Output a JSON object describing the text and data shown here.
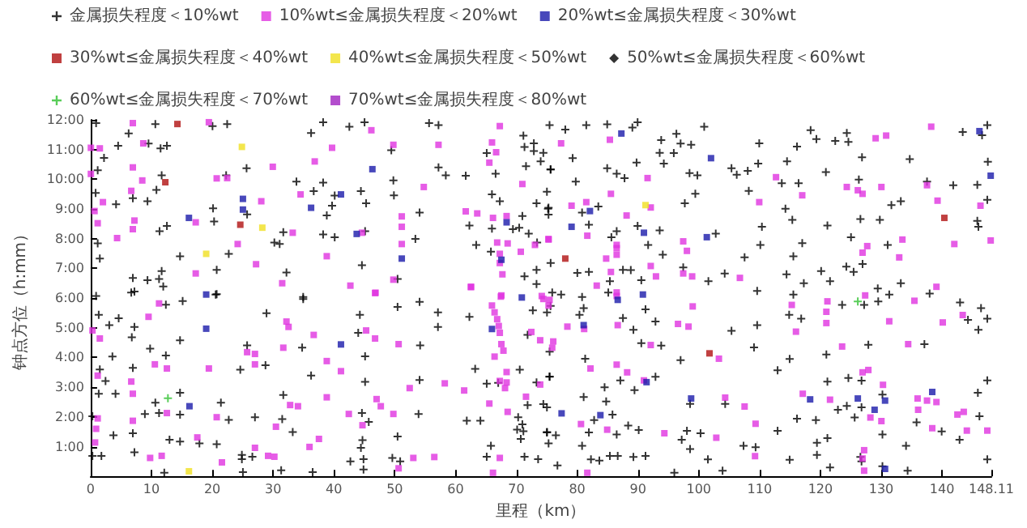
{
  "chart_data": {
    "type": "scatter",
    "xlabel": "里程（km）",
    "ylabel": "钟点方位（h:mm）",
    "xlim": [
      0,
      148.11
    ],
    "ylim": [
      0,
      12
    ],
    "xticks": [
      0,
      10,
      20,
      30,
      40,
      50,
      60,
      70,
      80,
      90,
      100,
      110,
      120,
      130,
      140,
      148.11
    ],
    "yticks": [
      {
        "value": 1,
        "label": "1:00"
      },
      {
        "value": 2,
        "label": "2:00"
      },
      {
        "value": 3,
        "label": "3:00"
      },
      {
        "value": 4,
        "label": "4:00"
      },
      {
        "value": 5,
        "label": "5:00"
      },
      {
        "value": 6,
        "label": "6:00"
      },
      {
        "value": 7,
        "label": "7:00"
      },
      {
        "value": 8,
        "label": "8:00"
      },
      {
        "value": 9,
        "label": "9:00"
      },
      {
        "value": 10,
        "label": "10:00"
      },
      {
        "value": 11,
        "label": "11:00"
      },
      {
        "value": 12,
        "label": "12:00"
      }
    ],
    "legend": "top",
    "series": [
      {
        "name": "金属损失程度＜10%wt",
        "color": "#000000",
        "marker": "cross",
        "x": [
          0.9,
          10.64,
          20.04,
          22.45,
          38.23,
          42.54,
          45.04,
          55.65,
          57.2,
          6.25,
          36.25,
          12.54,
          9.52,
          11.5,
          4.52,
          2.2,
          49.44,
          71.16,
          72.88,
          71.34,
          65.13,
          72.88,
          74.44,
          74.0,
          75.64,
          71.59,
          57.2,
          58.4,
          61.68,
          66.59,
          11.68,
          22.28,
          25.64,
          1.16,
          33.84,
          38.23,
          49.78,
          44.44,
          40.13,
          36.68,
          49.87,
          10.82,
          0.82,
          6.94,
          9.35,
          4.18,
          20.13,
          39.7,
          45.3,
          54.09,
          65.99,
          67.28,
          70.99,
          73.32,
          75.21,
          20.3,
          12.54,
          11.33,
          25.73,
          31.68,
          38.83,
          38.23,
          40.13,
          45.13,
          53.4,
          62.28,
          65.99,
          69.44,
          70.47,
          72.03,
          73.41,
          63.4,
          65.82,
          30.21,
          31.08,
          22.71,
          14.7,
          1.16,
          1.51,
          44.61,
          32.2,
          20.73,
          11.68,
          6.94,
          9.35,
          11.25,
          71.34,
          73.32,
          73.32,
          75.64,
          50.47,
          11.94,
          6.68,
          20.56,
          0.9,
          34.95,
          75.9,
          7.2,
          20.73,
          12.37,
          15.13,
          34.95,
          50.47,
          54.09,
          57.11,
          62.28,
          75.04,
          72.71,
          1.33,
          4.61,
          7.2,
          3.06,
          28.92,
          44.27,
          44.0,
          57.11,
          6.77,
          14.7,
          25.73,
          34.78,
          54.18,
          71.85,
          75.47,
          3.58,
          9.78,
          12.37,
          45.13,
          24.61,
          28.75,
          1.51,
          6.94,
          36.25,
          45.13,
          54.09,
          63.23,
          70.56,
          73.32,
          75.47,
          65.13,
          67.02,
          2.45,
          4.09,
          1.33,
          14.7,
          31.68,
          10.64,
          21.42,
          44.61,
          45.73,
          53.92,
          71.85,
          74.44,
          8.92,
          11.25,
          14.7,
          22.71,
          27.02,
          31.5,
          0.3,
          61.85,
          64.09,
          70.3,
          70.99,
          71.16,
          70.13,
          3.75,
          6.94,
          12.97,
          14.7,
          17.89,
          20.73,
          33.23,
          44.7,
          44.44,
          50.47,
          65.82,
          70.73,
          75.04,
          75.3,
          73.58,
          7.2,
          1.77,
          0.3,
          24.87,
          24.87,
          26.59,
          42.71,
          44.87,
          49.61,
          50.9,
          65.13,
          71.34,
          31.33,
          36.51,
          12.11,
          44.87,
          25.04,
          75.46,
          81.5,
          84.94,
          89.94,
          89.08,
          100.89,
          118.39,
          124.34,
          147.44,
          143.4,
          78.05,
          96.32,
          93.82,
          97.01,
          98.74,
          109.94,
          116.15,
          119.34,
          122.44,
          124.6,
          126.84,
          134.69,
          147.53,
          146.58,
          93.57,
          95.89,
          79.26,
          89.77,
          94.25,
          109.77,
          114.51,
          75.63,
          84.94,
          86.5,
          87.79,
          98.48,
          99.77,
          105.38,
          106.24,
          108.05,
          120.9,
          79.77,
          108.22,
          113.65,
          116.41,
          126.32,
          137.53,
          141.84,
          145.8,
          75.03,
          83.48,
          99.43,
          97.7,
          114.25,
          131.67,
          133.22,
          147.44,
          75.29,
          75.29,
          80.81,
          81.93,
          89.94,
          93.57,
          110.38,
          115.38,
          121.15,
          126.58,
          129.77,
          145.8,
          145.98,
          86.5,
          85.63,
          91.67,
          94.08,
          102.79,
          107.53,
          110.12,
          115.55,
          117.01,
          125.03,
          131.06,
          126.93,
          124.26,
          81.93,
          80.03,
          87.53,
          88.82,
          97.44,
          104.26,
          114.43,
          120.12,
          125.46,
          85.38,
          90.55,
          101.58,
          117.27,
          121.58,
          129.43,
          133.22,
          137.96,
          77.36,
          80.81,
          85.12,
          91.24,
          92.88,
          109.6,
          115.55,
          75.63,
          81.07,
          80.38,
          87.53,
          89.25,
          105.38,
          109.6,
          114.86,
          116.84,
          123.57,
          127.19,
          129.51,
          131.32,
          142.96,
          146.41,
          147.44,
          144.26,
          145.98,
          90.55,
          93.82,
          109.08,
          120.98,
          127.88,
          137.1,
          81.32,
          75.46,
          87.1,
          92.88,
          97.01,
          112.96,
          114.94,
          121.15,
          124.6,
          126.76,
          147.44,
          145.89,
          84.51,
          89.43,
          81.07,
          84.77,
          98.57,
          104.34,
          122.88,
          124.34,
          126.76,
          130.2,
          135.81,
          139.94,
          146.15,
          75.03,
          82.79,
          85.81,
          88.39,
          90.12,
          98.05,
          100.29,
          112.96,
          116.15,
          119.26,
          125.63,
          130.2,
          142.88,
          75.03,
          76.5,
          81.93,
          86.5,
          97.19,
          107.36,
          109.34,
          119.43,
          121.15,
          134.08,
          80.81,
          82.27,
          83.65,
          85.38,
          86.67,
          89.25,
          91.24,
          98.57,
          101.5,
          114.94,
          119.43,
          121.58,
          126.58,
          130.2,
          134.34,
          147.44,
          76.76,
          95.98,
          103.91,
          126.76
        ],
        "values": [
          11.89,
          11.86,
          11.79,
          11.86,
          11.92,
          11.77,
          11.92,
          11.89,
          11.82,
          11.54,
          11.56,
          11.13,
          11.2,
          11.04,
          11.13,
          10.72,
          10.98,
          11.47,
          11.21,
          11.09,
          10.88,
          10.95,
          10.89,
          10.6,
          10.33,
          10.44,
          10.4,
          10.13,
          10.12,
          10.19,
          10.13,
          10.13,
          10.37,
          10.3,
          9.92,
          9.89,
          9.96,
          9.6,
          9.45,
          9.6,
          9.46,
          9.64,
          9.54,
          9.36,
          9.26,
          9.16,
          9.02,
          9.11,
          9.19,
          8.88,
          9.49,
          9.26,
          8.76,
          9.19,
          9.01,
          8.58,
          8.43,
          8.25,
          8.82,
          8.22,
          8.78,
          8.14,
          8.05,
          8.25,
          7.99,
          8.44,
          8.34,
          8.32,
          8.37,
          8.17,
          7.87,
          7.79,
          7.56,
          7.87,
          7.82,
          7.49,
          7.41,
          7.84,
          7.33,
          7.11,
          6.86,
          6.95,
          6.91,
          6.68,
          6.6,
          6.64,
          6.73,
          6.95,
          6.47,
          7.18,
          6.64,
          6.39,
          6.19,
          6.12,
          6.07,
          6.04,
          6.19,
          6.22,
          6.13,
          5.78,
          5.9,
          5.97,
          5.7,
          5.87,
          5.52,
          5.37,
          5.52,
          5.59,
          5.44,
          5.32,
          5.03,
          5.09,
          5.49,
          5.44,
          4.83,
          5.03,
          4.68,
          4.58,
          4.41,
          4.33,
          4.41,
          4.76,
          4.2,
          4.03,
          4.3,
          4.07,
          4.04,
          3.59,
          3.74,
          3.6,
          3.65,
          3.39,
          3.18,
          3.24,
          3.62,
          3.59,
          3.16,
          3.36,
          3.12,
          3.15,
          3.21,
          2.78,
          2.78,
          2.81,
          2.74,
          2.48,
          2.48,
          2.13,
          1.83,
          2.1,
          2.4,
          2.43,
          2.1,
          2.13,
          2.08,
          1.9,
          1.99,
          1.93,
          2.02,
          1.87,
          1.87,
          1.99,
          1.75,
          1.52,
          1.57,
          1.38,
          1.45,
          1.23,
          1.17,
          1.11,
          1.08,
          1.49,
          1.22,
          0.96,
          1.34,
          1.03,
          1.26,
          1.49,
          1.11,
          0.58,
          0.81,
          0.69,
          0.69,
          0.72,
          0.58,
          0.66,
          0.5,
          0.58,
          0.62,
          0.5,
          0.66,
          0.66,
          0.2,
          0.14,
          0.12,
          0.23,
          0.14,
          11.82,
          11.82,
          11.85,
          11.92,
          11.74,
          11.77,
          11.65,
          11.56,
          11.82,
          11.59,
          11.67,
          11.53,
          11.32,
          11.2,
          11.16,
          11.21,
          11.1,
          11.35,
          11.29,
          11.26,
          10.74,
          10.68,
          10.59,
          11.48,
          10.89,
          10.88,
          10.71,
          10.56,
          10.53,
          10.53,
          10.6,
          10.33,
          10.37,
          10.19,
          10.04,
          10.21,
          10.13,
          10.37,
          10.15,
          10.28,
          10.24,
          9.92,
          9.61,
          9.87,
          9.87,
          9.99,
          9.92,
          9.8,
          9.81,
          9.58,
          9.08,
          9.51,
          9.19,
          9.01,
          9.13,
          9.26,
          9.31,
          9.04,
          8.81,
          8.88,
          8.47,
          8.43,
          8.28,
          8.4,
          8.63,
          8.44,
          8.66,
          8.63,
          8.6,
          8.4,
          8.25,
          8.05,
          7.79,
          7.46,
          8.17,
          7.37,
          7.79,
          7.41,
          7.85,
          8.05,
          7.79,
          7.15,
          7.06,
          6.88,
          6.85,
          6.95,
          6.94,
          7.03,
          6.83,
          6.8,
          6.91,
          6.88,
          6.57,
          6.6,
          6.57,
          6.5,
          6.57,
          6.32,
          6.5,
          6.15,
          6.12,
          6.04,
          6.19,
          5.62,
          5.21,
          6.24,
          6.12,
          5.74,
          5.66,
          5.44,
          5.33,
          4.93,
          4.9,
          5.09,
          5.44,
          5.31,
          5.77,
          5.77,
          5.89,
          6.12,
          5.85,
          5.66,
          5.31,
          5.27,
          4.93,
          4.48,
          4.4,
          4.34,
          4.1,
          4.43,
          4.45,
          3.96,
          3.35,
          3.23,
          3.35,
          3.91,
          3.57,
          3.95,
          3.19,
          3.31,
          3.22,
          3.23,
          2.81,
          3.0,
          2.9,
          2.67,
          2.52,
          2.44,
          2.44,
          2.24,
          2.37,
          2.32,
          2.75,
          1.82,
          1.51,
          2.02,
          2.32,
          1.89,
          2.08,
          1.71,
          1.56,
          1.53,
          1.45,
          1.53,
          1.94,
          1.89,
          1.98,
          1.41,
          1.23,
          1.48,
          1.38,
          1.48,
          1.41,
          1.23,
          1.03,
          0.98,
          1.13,
          1.29,
          1.03,
          1.03,
          0.57,
          0.53,
          0.69,
          0.69,
          0.65,
          0.69,
          0.92,
          0.57,
          0.56,
          0.72,
          0.3,
          0.65,
          0.34,
          0.19,
          0.57,
          0.37,
          0.12,
          0.19,
          0.5
        ]
      },
      {
        "name": "10%wt≤金属损失程度＜20%wt",
        "color": "#e033e0",
        "marker": "square",
        "x": [
          6.94,
          19.44,
          46.16,
          1.51,
          8.66,
          39.7,
          57.2,
          66.0,
          66.68,
          49.78,
          6.94,
          29.95,
          36.85,
          65.56,
          20.73,
          22.45,
          8.49,
          6.68,
          2.02,
          34.52,
          54.78,
          28.06,
          7.2,
          17.28,
          6.94,
          44.61,
          33.23,
          51.16,
          51.16,
          51.16,
          61.68,
          63.57,
          66.16,
          68.4,
          66.85,
          68.57,
          67.28,
          67.28,
          67.71,
          70.73,
          73.06,
          75.3,
          70.99,
          67.28,
          0.64,
          1.16,
          0.04,
          24.18,
          38.83,
          27.2,
          17.28,
          31.5,
          42.71,
          46.85,
          49.78,
          62.54,
          67.54,
          74.18,
          4.35,
          0.04,
          46.77,
          62.54,
          67.45,
          74.44,
          75.3,
          65.99,
          66.42,
          66.85,
          67.11,
          67.28,
          67.54,
          67.88,
          66.42,
          68.4,
          68.4,
          68.14,
          67.28,
          72.46,
          73.92,
          75.9,
          73.92,
          71.59,
          68.57,
          65.56,
          9.52,
          11.25,
          0.3,
          1.51,
          32.2,
          32.54,
          36.68,
          45.3,
          46.77,
          50.64,
          31.68,
          25.73,
          27.02,
          27.02,
          38.83,
          41.16,
          10.56,
          12.54,
          19.44,
          1.16,
          6.68,
          6.94,
          38.83,
          47.02,
          47.71,
          52.46,
          58.23,
          61.42,
          32.8,
          34.09,
          42.45,
          49.78,
          20.73,
          12.54,
          1.16,
          6.94,
          0.9,
          44.7,
          30.47,
          17.54,
          0.73,
          27.02,
          35.99,
          37.54,
          9.78,
          11.68,
          21.59,
          29.18,
          30.21,
          53.06,
          50.64,
          67.28,
          66.16,
          56.51,
          77.36,
          85.38,
          138.22,
          130.81,
          129.08,
          91.58,
          85.55,
          79.08,
          81.5,
          92.1,
          88.13,
          109.94,
          112.7,
          117.01,
          124.34,
          126.15,
          126.93,
          130.03,
          137.53,
          139.26,
          146.32,
          75.29,
          81.67,
          86.5,
          86.5,
          84.77,
          86.5,
          85.55,
          97.44,
          98.05,
          92.1,
          92.96,
          97.44,
          98.91,
          106.76,
          83.22,
          86.5,
          86.5,
          75.46,
          99.0,
          115.29,
          121.15,
          120.98,
          120.98,
          127.36,
          135.46,
          139.08,
          143.4,
          140.12,
          131.32,
          126.93,
          127.7,
          132.96,
          133.48,
          142.02,
          148.0,
          78.39,
          81.15,
          86.67,
          96.58,
          98.31,
          92.1,
          115.98,
          123.57,
          134.43,
          76.07,
          82.19,
          86.5,
          88.22,
          90.98,
          103.31,
          126.93,
          127.88,
          130.29,
          117.1,
          121.58,
          107.53,
          104.34,
          109.34,
          128.22,
          130.03,
          135.98,
          137.53,
          139.08,
          136.07,
          143.57,
          142.53,
          144.08,
          147.44,
          138.39,
          102.88,
          94.34,
          80.63,
          84.94,
          127.19,
          109.25,
          127.19,
          81.67,
          126.93
        ],
        "values": [
          11.89,
          11.92,
          11.65,
          11.04,
          11.21,
          11.06,
          11.16,
          11.24,
          10.91,
          11.16,
          10.4,
          10.42,
          10.6,
          10.56,
          10.03,
          10.04,
          9.96,
          9.61,
          9.23,
          9.49,
          9.74,
          9.26,
          8.61,
          8.55,
          8.32,
          8.2,
          8.2,
          8.75,
          8.4,
          7.82,
          8.92,
          8.85,
          8.7,
          8.76,
          7.87,
          7.84,
          7.49,
          7.18,
          6.8,
          7.56,
          7.79,
          7.97,
          9.84,
          11.79,
          8.93,
          8.52,
          10.18,
          7.82,
          7.41,
          7.14,
          6.83,
          6.5,
          6.42,
          6.18,
          6.62,
          6.38,
          6.09,
          6.07,
          8.02,
          11.06,
          6.17,
          6.37,
          6.05,
          5.97,
          5.75,
          5.75,
          5.52,
          5.29,
          5.06,
          4.83,
          4.45,
          4.23,
          4.03,
          3.51,
          3.16,
          2.97,
          3.21,
          4.86,
          4.58,
          4.33,
          3.09,
          2.68,
          2.17,
          2.45,
          5.37,
          5.82,
          4.91,
          4.64,
          5.21,
          5.03,
          4.76,
          4.91,
          4.64,
          4.45,
          4.33,
          4.18,
          4.12,
          3.77,
          3.88,
          3.54,
          3.77,
          3.63,
          3.63,
          3.39,
          3.19,
          2.78,
          2.66,
          2.6,
          2.36,
          2.97,
          3.13,
          2.89,
          2.4,
          2.36,
          2.1,
          2.1,
          1.99,
          2.13,
          1.95,
          1.87,
          1.6,
          1.72,
          1.67,
          1.31,
          1.14,
          0.96,
          0.99,
          1.26,
          0.62,
          0.69,
          0.47,
          0.69,
          0.66,
          0.62,
          0.27,
          0.62,
          0.12,
          0.65,
          11.21,
          11.33,
          11.77,
          11.47,
          11.38,
          10.04,
          9.51,
          9.11,
          9.23,
          9.05,
          8.78,
          9.23,
          10.07,
          9.46,
          9.74,
          9.63,
          9.51,
          9.74,
          9.8,
          9.28,
          9.11,
          7.99,
          8.1,
          7.79,
          7.68,
          7.33,
          7.46,
          6.88,
          7.91,
          7.59,
          7.08,
          6.73,
          6.83,
          6.73,
          6.68,
          6.42,
          6.19,
          6.07,
          5.94,
          5.72,
          5.77,
          5.89,
          5.54,
          5.16,
          6.09,
          5.91,
          6.38,
          5.43,
          5.18,
          5.22,
          7.53,
          7.75,
          7.37,
          7.97,
          7.82,
          7.94,
          5.04,
          4.96,
          5.09,
          5.13,
          5.04,
          4.42,
          4.87,
          4.37,
          4.45,
          4.54,
          3.63,
          3.76,
          3.5,
          3.23,
          3.96,
          3.5,
          3.58,
          3.08,
          2.78,
          2.58,
          2.35,
          2.65,
          1.77,
          1.98,
          1.86,
          2.62,
          2.55,
          2.5,
          2.24,
          2.17,
          2.08,
          1.54,
          1.54,
          1.62,
          1.3,
          1.45,
          1.76,
          1.57,
          0.88,
          0.68,
          0.19,
          0.12,
          0.6
        ]
      },
      {
        "name": "20%wt≤金属损失程度＜30%wt",
        "color": "#1a1aaa",
        "marker": "square",
        "x": [
          46.33,
          41.16,
          36.25,
          25.04,
          25.04,
          16.16,
          43.75,
          68.4,
          67.54,
          51.16,
          19.0,
          19.0,
          41.16,
          16.25,
          70.9,
          65.99,
          87.27,
          102.01,
          82.1,
          79.08,
          90.98,
          101.32,
          90.81,
          86.67,
          81.07,
          91.41,
          98.74,
          118.31,
          126.15,
          128.91,
          138.39,
          77.44,
          83.82,
          130.63,
          146.15,
          148.0,
          130.63
        ],
        "values": [
          10.34,
          9.49,
          9.04,
          9.34,
          8.98,
          8.7,
          8.16,
          8.55,
          7.29,
          7.33,
          6.12,
          4.97,
          4.44,
          2.36,
          6.02,
          4.96,
          11.54,
          10.71,
          8.93,
          8.4,
          8.2,
          8.05,
          6.12,
          5.94,
          5.09,
          3.17,
          2.62,
          2.59,
          2.62,
          2.24,
          2.84,
          2.12,
          2.06,
          0.25,
          11.62,
          10.12,
          2.55
        ]
      },
      {
        "name": "30%wt≤金属损失程度＜40%wt",
        "color": "#b01010",
        "marker": "square",
        "x": [
          14.27,
          12.28,
          24.61,
          78.05,
          101.76,
          140.38
        ],
        "values": [
          11.86,
          9.9,
          8.47,
          7.33,
          4.14,
          8.7
        ]
      },
      {
        "name": "40%wt≤金属损失程度＜50%wt",
        "color": "#f0e020",
        "marker": "square",
        "x": [
          24.87,
          28.23,
          19.0,
          16.16,
          91.24
        ],
        "values": [
          11.09,
          8.37,
          7.49,
          0.17,
          9.13
        ]
      },
      {
        "name": "50%wt≤金属损失程度＜60%wt",
        "color": "#000000",
        "marker": "diamond"
      },
      {
        "name": "60%wt≤金属损失程度＜70%wt",
        "color": "#30c030",
        "marker": "cross",
        "x": [
          12.71,
          126.15
        ],
        "values": [
          2.63,
          5.89
        ]
      },
      {
        "name": "70%wt≤金属损失程度＜80%wt",
        "color": "#a020c0",
        "marker": "square"
      }
    ]
  }
}
